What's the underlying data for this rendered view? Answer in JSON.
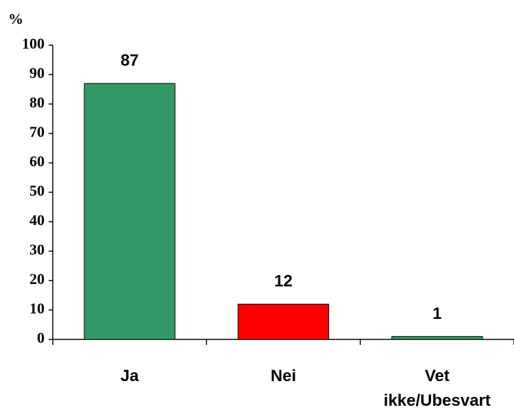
{
  "chart_data": {
    "type": "bar",
    "y_unit": "%",
    "categories": [
      "Ja",
      "Nei",
      "Vet ikke/Ubesvart"
    ],
    "values": [
      87,
      12,
      1
    ],
    "colors": [
      "#339966",
      "#ff0000",
      "#339966"
    ],
    "ylim": [
      0,
      100
    ],
    "yticks": [
      0,
      10,
      20,
      30,
      40,
      50,
      60,
      70,
      80,
      90,
      100
    ],
    "grid": false
  }
}
